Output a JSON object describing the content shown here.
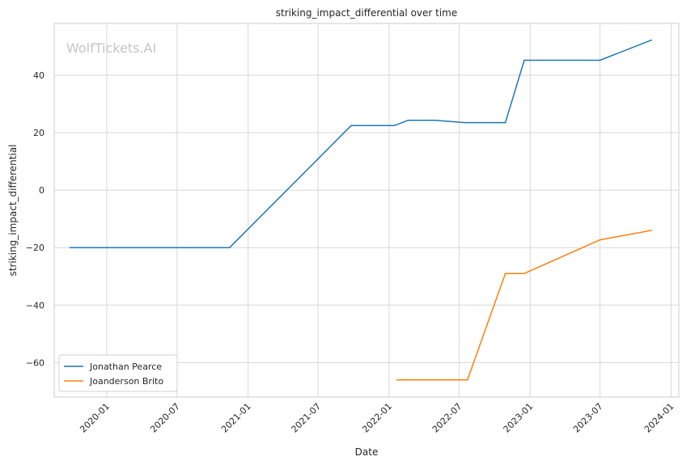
{
  "chart_data": {
    "type": "line",
    "title": "striking_impact_differential over time",
    "xlabel": "Date",
    "ylabel": "striking_impact_differential",
    "watermark": "WolfTickets.AI",
    "x_tick_labels": [
      "2020-01",
      "2020-07",
      "2021-01",
      "2021-07",
      "2022-01",
      "2022-07",
      "2023-01",
      "2023-07",
      "2024-01"
    ],
    "y_ticks": [
      -60,
      -40,
      -20,
      0,
      20,
      40
    ],
    "y_tick_labels": [
      "−60",
      "−40",
      "−20",
      "0",
      "20",
      "40"
    ],
    "xlim": [
      "2019-08-18",
      "2024-01-21"
    ],
    "ylim": [
      -72,
      58
    ],
    "grid": true,
    "legend_position": "lower-left",
    "series": [
      {
        "name": "Jonathan Pearce",
        "color": "#1f77b4",
        "points": [
          {
            "x": "2019-09-28",
            "y": -20
          },
          {
            "x": "2020-11-14",
            "y": -20
          },
          {
            "x": "2021-09-25",
            "y": 22.5
          },
          {
            "x": "2022-01-15",
            "y": 22.5
          },
          {
            "x": "2022-02-19",
            "y": 24.3
          },
          {
            "x": "2022-04-30",
            "y": 24.3
          },
          {
            "x": "2022-07-16",
            "y": 23.5
          },
          {
            "x": "2022-10-29",
            "y": 23.5
          },
          {
            "x": "2022-12-17",
            "y": 45.2
          },
          {
            "x": "2023-07-01",
            "y": 45.2
          },
          {
            "x": "2023-11-11",
            "y": 52.2
          }
        ]
      },
      {
        "name": "Joanderson Brito",
        "color": "#ff7f0e",
        "points": [
          {
            "x": "2022-01-22",
            "y": -66
          },
          {
            "x": "2022-07-23",
            "y": -66
          },
          {
            "x": "2022-10-29",
            "y": -29
          },
          {
            "x": "2022-12-17",
            "y": -29
          },
          {
            "x": "2023-07-01",
            "y": -17.3
          },
          {
            "x": "2023-11-11",
            "y": -14
          }
        ]
      }
    ]
  }
}
